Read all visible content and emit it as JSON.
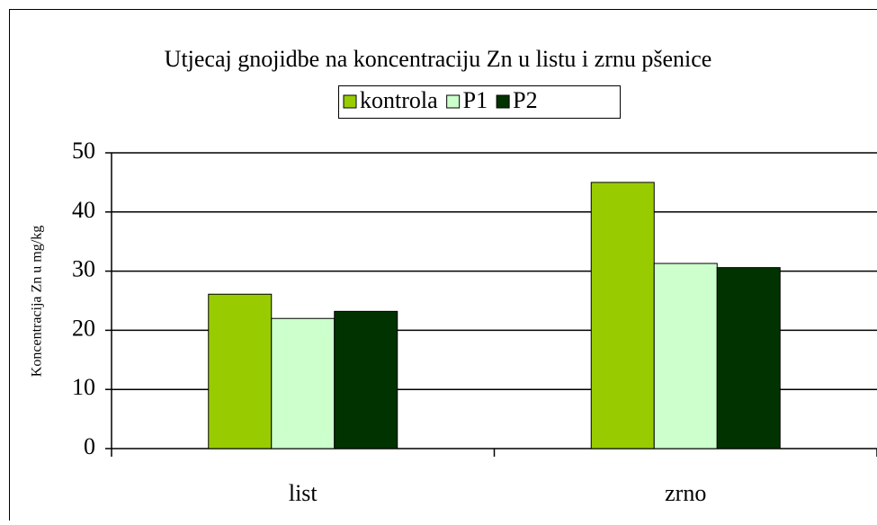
{
  "chart_data": {
    "type": "bar",
    "title": "Utjecaj gnojidbe na koncentraciju Zn u listu i zrnu pšenice",
    "y_label": "Koncentracija Zn u mg/kg",
    "categories": [
      "list",
      "zrno"
    ],
    "series": [
      {
        "name": "kontrola",
        "color": "#99cc00",
        "values": [
          26.1,
          45
        ]
      },
      {
        "name": "P1",
        "color": "#ccffcc",
        "values": [
          22,
          31.3
        ]
      },
      {
        "name": "P2",
        "color": "#003300",
        "values": [
          23.2,
          30.6
        ]
      }
    ],
    "ylim": [
      0,
      50
    ],
    "yticks": [
      0,
      10,
      20,
      30,
      40,
      50
    ],
    "grid": true,
    "legend": "top"
  }
}
